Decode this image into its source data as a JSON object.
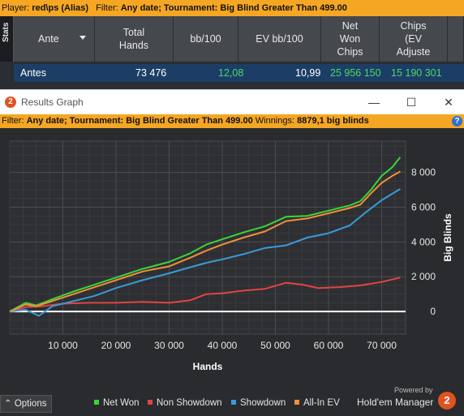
{
  "top_filter": {
    "player_label": "Player:",
    "player_value": "red\\ps (Alias)",
    "filter_label": "Filter:",
    "filter_value": "Any date; Tournament: Big Blind Greater Than 499.00"
  },
  "stats": {
    "tab_label": "Stats",
    "headers": [
      "Ante",
      "Total\nHands",
      "bb/100",
      "EV bb/100",
      "Net\nWon\nChips",
      "Chips\n(EV\nAdjuste"
    ],
    "row": {
      "ante": "Antes",
      "total_hands": "73 476",
      "bb100": "12,08",
      "ev_bb100": "10,99",
      "net_won_chips": "25 956 150",
      "chips_ev": "15 190 301"
    }
  },
  "window": {
    "title": "Results Graph",
    "app_icon": "holdem-manager-logo",
    "minimize_icon": "—",
    "maximize_icon": "☐",
    "close_icon": "✕"
  },
  "graph_filter": {
    "filter_label": "Filter:",
    "filter_value": "Any date; Tournament: Big Blind Greater Than 499.00",
    "winnings_label": "Winnings:",
    "winnings_value": "8879,1 big blinds",
    "help_icon": "?"
  },
  "chart_data": {
    "type": "line",
    "xlabel": "Hands",
    "ylabel": "Big Blinds",
    "xlim": [
      0,
      74500
    ],
    "ylim": [
      -1300,
      9800
    ],
    "x_ticks": [
      10000,
      20000,
      30000,
      40000,
      50000,
      60000,
      70000
    ],
    "x_tick_labels": [
      "10 000",
      "20 000",
      "30 000",
      "40 000",
      "50 000",
      "60 000",
      "70 000"
    ],
    "y_ticks": [
      0,
      2000,
      4000,
      6000,
      8000
    ],
    "y_tick_labels": [
      "0",
      "2 000",
      "4 000",
      "6 000",
      "8 000"
    ],
    "grid": true,
    "y_axis_side": "right",
    "legend_placement": "bottom",
    "series": [
      {
        "name": "Net Won",
        "color": "#3ad43a",
        "x": [
          0,
          3000,
          5000,
          8000,
          12000,
          16000,
          20000,
          25000,
          30000,
          34000,
          37000,
          40000,
          44000,
          48000,
          52000,
          56000,
          60000,
          64000,
          66000,
          68000,
          70000,
          72000,
          73500
        ],
        "y": [
          0,
          500,
          350,
          700,
          1150,
          1550,
          1950,
          2450,
          2850,
          3350,
          3850,
          4150,
          4550,
          4900,
          5450,
          5500,
          5800,
          6100,
          6350,
          7000,
          7800,
          8300,
          8880
        ]
      },
      {
        "name": "Non Showdown",
        "color": "#e04545",
        "x": [
          0,
          3000,
          6000,
          10000,
          15000,
          20000,
          25000,
          30000,
          34000,
          37000,
          40000,
          44000,
          48000,
          52000,
          55000,
          58000,
          62000,
          66000,
          70000,
          73500
        ],
        "y": [
          0,
          250,
          300,
          450,
          500,
          500,
          550,
          500,
          650,
          1000,
          1050,
          1200,
          1300,
          1650,
          1550,
          1350,
          1400,
          1500,
          1700,
          1950
        ]
      },
      {
        "name": "Showdown",
        "color": "#3a9ad9",
        "x": [
          0,
          3000,
          5500,
          8000,
          12000,
          16000,
          20000,
          25000,
          30000,
          34000,
          37000,
          40000,
          44000,
          48000,
          52000,
          56000,
          60000,
          64000,
          67000,
          70000,
          73500
        ],
        "y": [
          0,
          100,
          -250,
          300,
          600,
          900,
          1350,
          1800,
          2200,
          2550,
          2800,
          3000,
          3300,
          3650,
          3800,
          4250,
          4500,
          4950,
          5700,
          6400,
          7050
        ]
      },
      {
        "name": "All-In EV",
        "color": "#f0903a",
        "x": [
          0,
          3000,
          5000,
          8000,
          12000,
          16000,
          20000,
          25000,
          30000,
          34000,
          37000,
          40000,
          44000,
          48000,
          52000,
          56000,
          60000,
          64000,
          66000,
          68000,
          70000,
          72000,
          73500
        ],
        "y": [
          0,
          400,
          300,
          600,
          1000,
          1400,
          1800,
          2300,
          2600,
          3100,
          3500,
          3850,
          4250,
          4600,
          5200,
          5350,
          5650,
          5950,
          6150,
          6800,
          7400,
          7800,
          8050
        ]
      }
    ]
  },
  "bottom_bar": {
    "options_label": "Options",
    "powered_by": "Powered by",
    "brand": "Hold'em Manager"
  }
}
